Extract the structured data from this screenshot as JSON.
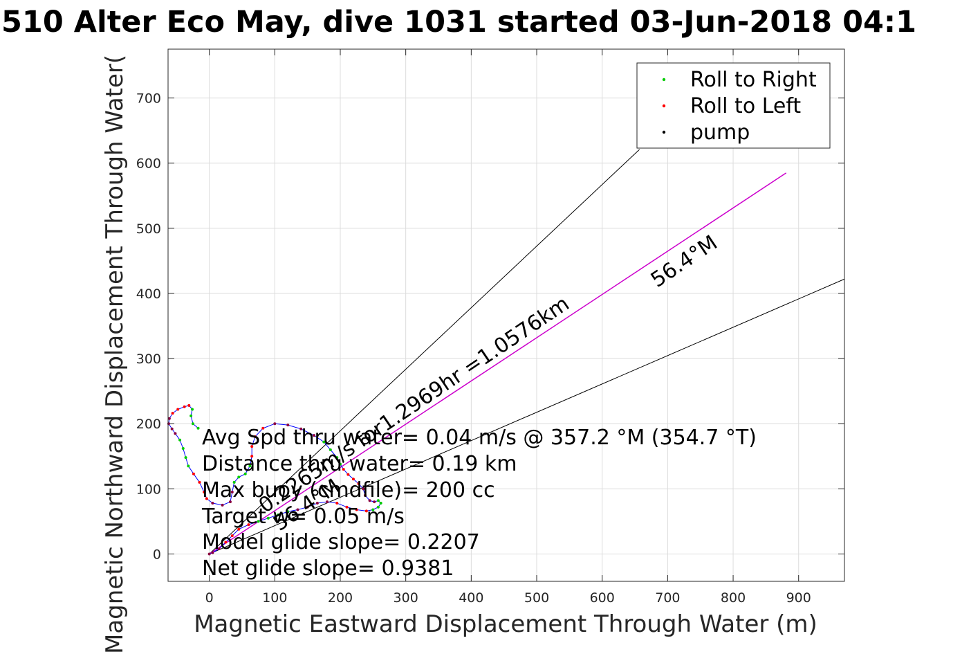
{
  "chart_data": {
    "type": "scatter",
    "title": "510 Alter Eco May, dive 1031 started 03-Jun-2018 04:1",
    "xlabel": "Magnetic Eastward Displacement Through Water (m)",
    "ylabel": "Magnetic Northward Displacement Through Water(",
    "xlim": [
      -63,
      970
    ],
    "ylim": [
      -42,
      775
    ],
    "xticks": [
      0,
      100,
      200,
      300,
      400,
      500,
      600,
      700,
      800,
      900
    ],
    "yticks": [
      0,
      100,
      200,
      300,
      400,
      500,
      600,
      700
    ],
    "xtick_labels": [
      "0",
      "100",
      "200",
      "300",
      "400",
      "500",
      "600",
      "700",
      "800",
      "900"
    ],
    "ytick_labels": [
      "0",
      "100",
      "200",
      "300",
      "400",
      "500",
      "600",
      "700"
    ],
    "grid": true,
    "legend_position": "top-right",
    "legend": [
      {
        "label": "Roll to Right",
        "color": "#00cc00"
      },
      {
        "label": "Roll to Left",
        "color": "#ff0000"
      },
      {
        "label": "pump",
        "color": "#000000"
      }
    ],
    "track": [
      [
        -17,
        193
      ],
      [
        -25,
        200
      ],
      [
        -28,
        212
      ],
      [
        -26,
        222
      ],
      [
        -31,
        228
      ],
      [
        -38,
        226
      ],
      [
        -48,
        222
      ],
      [
        -56,
        216
      ],
      [
        -61,
        208
      ],
      [
        -62,
        200
      ],
      [
        -57,
        192
      ],
      [
        -52,
        185
      ],
      [
        -45,
        175
      ],
      [
        -40,
        162
      ],
      [
        -36,
        148
      ],
      [
        -32,
        135
      ],
      [
        -24,
        123
      ],
      [
        -15,
        110
      ],
      [
        -8,
        95
      ],
      [
        -4,
        85
      ],
      [
        5,
        78
      ],
      [
        20,
        75
      ],
      [
        32,
        80
      ],
      [
        35,
        95
      ],
      [
        38,
        110
      ],
      [
        45,
        118
      ],
      [
        55,
        123
      ],
      [
        62,
        135
      ],
      [
        65,
        150
      ],
      [
        65,
        165
      ],
      [
        70,
        180
      ],
      [
        82,
        193
      ],
      [
        100,
        200
      ],
      [
        120,
        198
      ],
      [
        140,
        192
      ],
      [
        160,
        182
      ],
      [
        175,
        172
      ],
      [
        185,
        160
      ],
      [
        195,
        148
      ],
      [
        200,
        138
      ],
      [
        205,
        130
      ],
      [
        212,
        122
      ],
      [
        220,
        115
      ],
      [
        228,
        108
      ],
      [
        235,
        100
      ],
      [
        238,
        90
      ],
      [
        245,
        82
      ],
      [
        252,
        80
      ],
      [
        258,
        82
      ],
      [
        262,
        78
      ],
      [
        258,
        72
      ],
      [
        250,
        68
      ],
      [
        240,
        66
      ],
      [
        225,
        68
      ],
      [
        210,
        72
      ],
      [
        195,
        78
      ],
      [
        180,
        80
      ],
      [
        165,
        78
      ],
      [
        150,
        72
      ],
      [
        135,
        68
      ],
      [
        120,
        65
      ],
      [
        105,
        60
      ],
      [
        90,
        55
      ],
      [
        75,
        50
      ],
      [
        60,
        45
      ],
      [
        45,
        38
      ],
      [
        35,
        28
      ],
      [
        25,
        18
      ],
      [
        15,
        8
      ],
      [
        5,
        2
      ],
      [
        0,
        0
      ]
    ],
    "avg_track_line": {
      "x": [
        0,
        881
      ],
      "y": [
        0,
        585
      ],
      "color": "#cc00cc"
    },
    "heading_lines": {
      "end_points": [
        [
          657,
          621
        ],
        [
          970,
          422
        ]
      ],
      "color": "#000000"
    },
    "annotations": {
      "heading": "56.4°M",
      "speed_line": "0.2265m/s for1.2969hr =1.0576km",
      "near_origin": "56.4°M"
    },
    "stats": [
      "Avg Spd thru water=  0.04 m/s @ 357.2 °M (354.7 °T)",
      "Distance thru water=  0.19 km",
      "Max buoy (cmdfile)= 200 cc",
      "Target w= 0.05 m/s",
      "Model glide slope= 0.2207",
      "Net glide slope= 0.9381"
    ]
  }
}
